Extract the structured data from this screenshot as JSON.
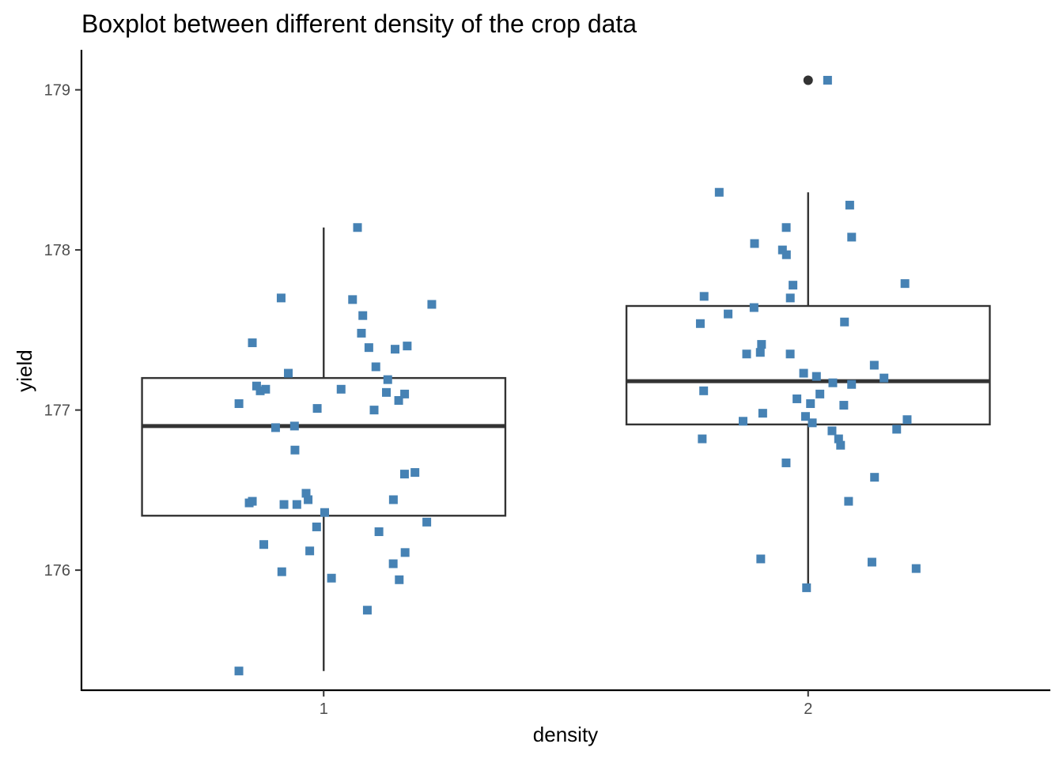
{
  "chart_data": {
    "type": "boxplot",
    "title": "Boxplot between different density of the crop data",
    "xlabel": "density",
    "ylabel": "yield",
    "ylim": [
      175.25,
      179.25
    ],
    "yticks": [
      "176",
      "177",
      "178",
      "179"
    ],
    "categories": [
      "1",
      "2"
    ],
    "grid": false,
    "colors": {
      "points": "#4682b4",
      "box": "#333333",
      "axis": "#000000"
    },
    "boxes": [
      {
        "category": "1",
        "lower_whisker": 175.37,
        "q1": 176.34,
        "median": 176.9,
        "q3": 177.2,
        "upper_whisker": 178.14,
        "outliers": []
      },
      {
        "category": "2",
        "lower_whisker": 175.89,
        "q1": 176.91,
        "median": 177.18,
        "q3": 177.65,
        "upper_whisker": 178.36,
        "outliers": [
          179.06
        ]
      }
    ],
    "points": [
      {
        "category": "1",
        "values": [
          178.14,
          177.7,
          177.69,
          177.66,
          177.59,
          177.48,
          177.42,
          177.4,
          177.39,
          177.38,
          177.27,
          177.23,
          177.19,
          177.15,
          177.13,
          177.13,
          177.12,
          177.11,
          177.1,
          177.06,
          177.04,
          177.01,
          177.0,
          176.9,
          176.89,
          176.75,
          176.61,
          176.6,
          176.48,
          176.44,
          176.44,
          176.43,
          176.42,
          176.41,
          176.41,
          176.36,
          176.3,
          176.27,
          176.24,
          176.16,
          176.12,
          176.11,
          176.04,
          175.99,
          175.95,
          175.94,
          175.75,
          175.37
        ]
      },
      {
        "category": "2",
        "values": [
          179.06,
          178.36,
          178.28,
          178.14,
          178.08,
          178.04,
          178.0,
          177.97,
          177.7,
          177.79,
          177.78,
          177.71,
          177.64,
          177.6,
          177.55,
          177.54,
          177.41,
          177.36,
          177.35,
          177.35,
          177.28,
          177.23,
          177.21,
          177.2,
          177.17,
          177.16,
          177.12,
          177.1,
          177.07,
          177.04,
          177.03,
          176.98,
          176.96,
          176.94,
          176.93,
          176.92,
          176.88,
          176.87,
          176.82,
          176.82,
          176.78,
          176.67,
          176.58,
          176.43,
          176.07,
          176.05,
          176.01,
          175.89
        ]
      }
    ]
  }
}
